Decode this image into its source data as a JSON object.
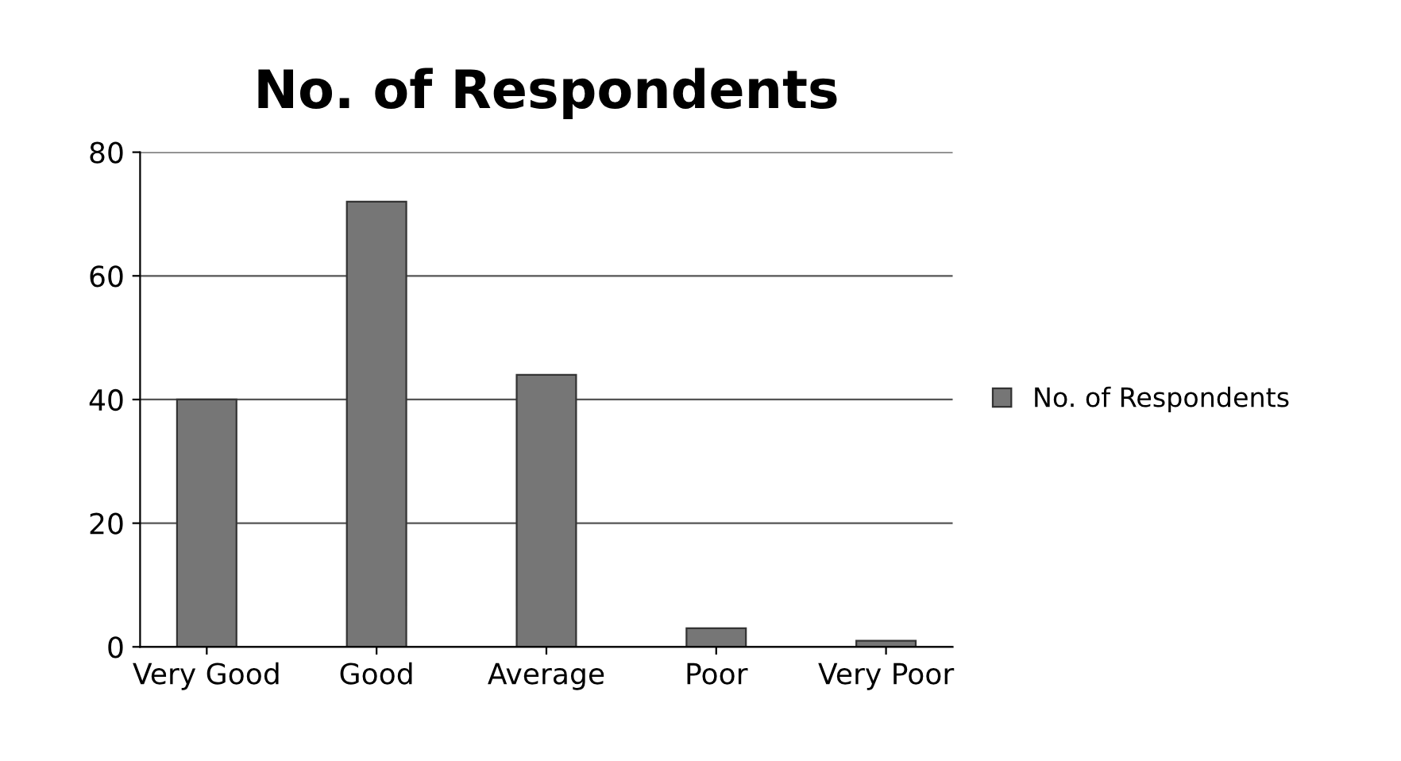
{
  "chart_data": {
    "type": "bar",
    "title": "No. of Respondents",
    "categories": [
      "Very Good",
      "Good",
      "Average",
      "Poor",
      "Very Poor"
    ],
    "series": [
      {
        "name": "No. of Respondents",
        "color": "#767676",
        "values": [
          40,
          72,
          44,
          3,
          1
        ]
      }
    ],
    "ylim": [
      0,
      80
    ],
    "yticks": [
      0,
      20,
      40,
      60,
      80
    ],
    "grid": "y",
    "legend": "right"
  }
}
